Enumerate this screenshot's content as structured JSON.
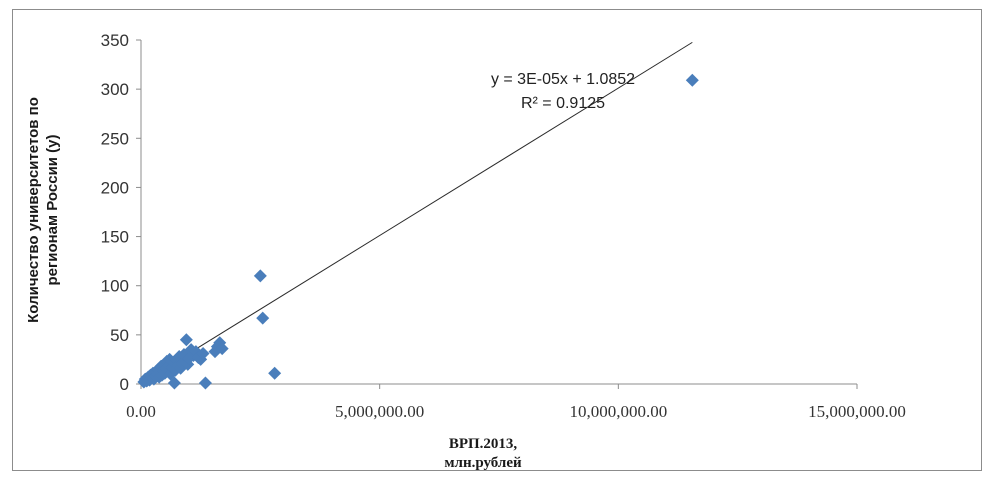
{
  "chart_data": {
    "type": "scatter",
    "title": "",
    "xlabel_lines": [
      "ВРП.2013,",
      "млн.рублей"
    ],
    "ylabel_lines": [
      "Количество университетов по",
      "регионам России (у)"
    ],
    "xlim": [
      0,
      15000000
    ],
    "ylim": [
      0,
      350
    ],
    "x_ticks": [
      0,
      5000000,
      10000000,
      15000000
    ],
    "x_tick_labels": [
      "0.00",
      "5,000,000.00",
      "10,000,000.00",
      "15,000,000.00"
    ],
    "y_ticks": [
      0,
      50,
      100,
      150,
      200,
      250,
      300,
      350
    ],
    "y_tick_labels": [
      "0",
      "50",
      "100",
      "150",
      "200",
      "250",
      "300",
      "350"
    ],
    "grid": false,
    "marker_color": "#4a7ebb",
    "trendline_color": "#2b2b2b",
    "trendline": {
      "slope": 3e-05,
      "intercept": 1.0852,
      "equation_label": "y = 3E-05x + 1.0852",
      "r2_label": "R² = 0.9125"
    },
    "points": [
      {
        "x": 60000,
        "y": 2
      },
      {
        "x": 90000,
        "y": 5
      },
      {
        "x": 120000,
        "y": 3
      },
      {
        "x": 150000,
        "y": 7
      },
      {
        "x": 180000,
        "y": 4
      },
      {
        "x": 200000,
        "y": 9
      },
      {
        "x": 220000,
        "y": 6
      },
      {
        "x": 250000,
        "y": 11
      },
      {
        "x": 270000,
        "y": 5
      },
      {
        "x": 300000,
        "y": 8
      },
      {
        "x": 320000,
        "y": 13
      },
      {
        "x": 340000,
        "y": 10
      },
      {
        "x": 360000,
        "y": 15
      },
      {
        "x": 380000,
        "y": 7
      },
      {
        "x": 400000,
        "y": 12
      },
      {
        "x": 420000,
        "y": 18
      },
      {
        "x": 440000,
        "y": 9
      },
      {
        "x": 460000,
        "y": 14
      },
      {
        "x": 480000,
        "y": 20
      },
      {
        "x": 500000,
        "y": 11
      },
      {
        "x": 520000,
        "y": 16
      },
      {
        "x": 540000,
        "y": 23
      },
      {
        "x": 560000,
        "y": 13
      },
      {
        "x": 580000,
        "y": 19
      },
      {
        "x": 600000,
        "y": 25
      },
      {
        "x": 620000,
        "y": 10
      },
      {
        "x": 650000,
        "y": 17
      },
      {
        "x": 680000,
        "y": 22
      },
      {
        "x": 700000,
        "y": 1
      },
      {
        "x": 720000,
        "y": 14
      },
      {
        "x": 750000,
        "y": 24
      },
      {
        "x": 780000,
        "y": 19
      },
      {
        "x": 800000,
        "y": 28
      },
      {
        "x": 830000,
        "y": 16
      },
      {
        "x": 860000,
        "y": 21
      },
      {
        "x": 900000,
        "y": 30
      },
      {
        "x": 950000,
        "y": 45
      },
      {
        "x": 980000,
        "y": 20
      },
      {
        "x": 1000000,
        "y": 26
      },
      {
        "x": 1050000,
        "y": 35
      },
      {
        "x": 1100000,
        "y": 29
      },
      {
        "x": 1150000,
        "y": 33
      },
      {
        "x": 1200000,
        "y": 27
      },
      {
        "x": 1250000,
        "y": 25
      },
      {
        "x": 1300000,
        "y": 31
      },
      {
        "x": 1350000,
        "y": 1
      },
      {
        "x": 1550000,
        "y": 33
      },
      {
        "x": 1600000,
        "y": 38
      },
      {
        "x": 1650000,
        "y": 42
      },
      {
        "x": 1700000,
        "y": 36
      },
      {
        "x": 2500000,
        "y": 110
      },
      {
        "x": 2550000,
        "y": 67
      },
      {
        "x": 2800000,
        "y": 11
      },
      {
        "x": 11550000,
        "y": 309
      }
    ]
  }
}
